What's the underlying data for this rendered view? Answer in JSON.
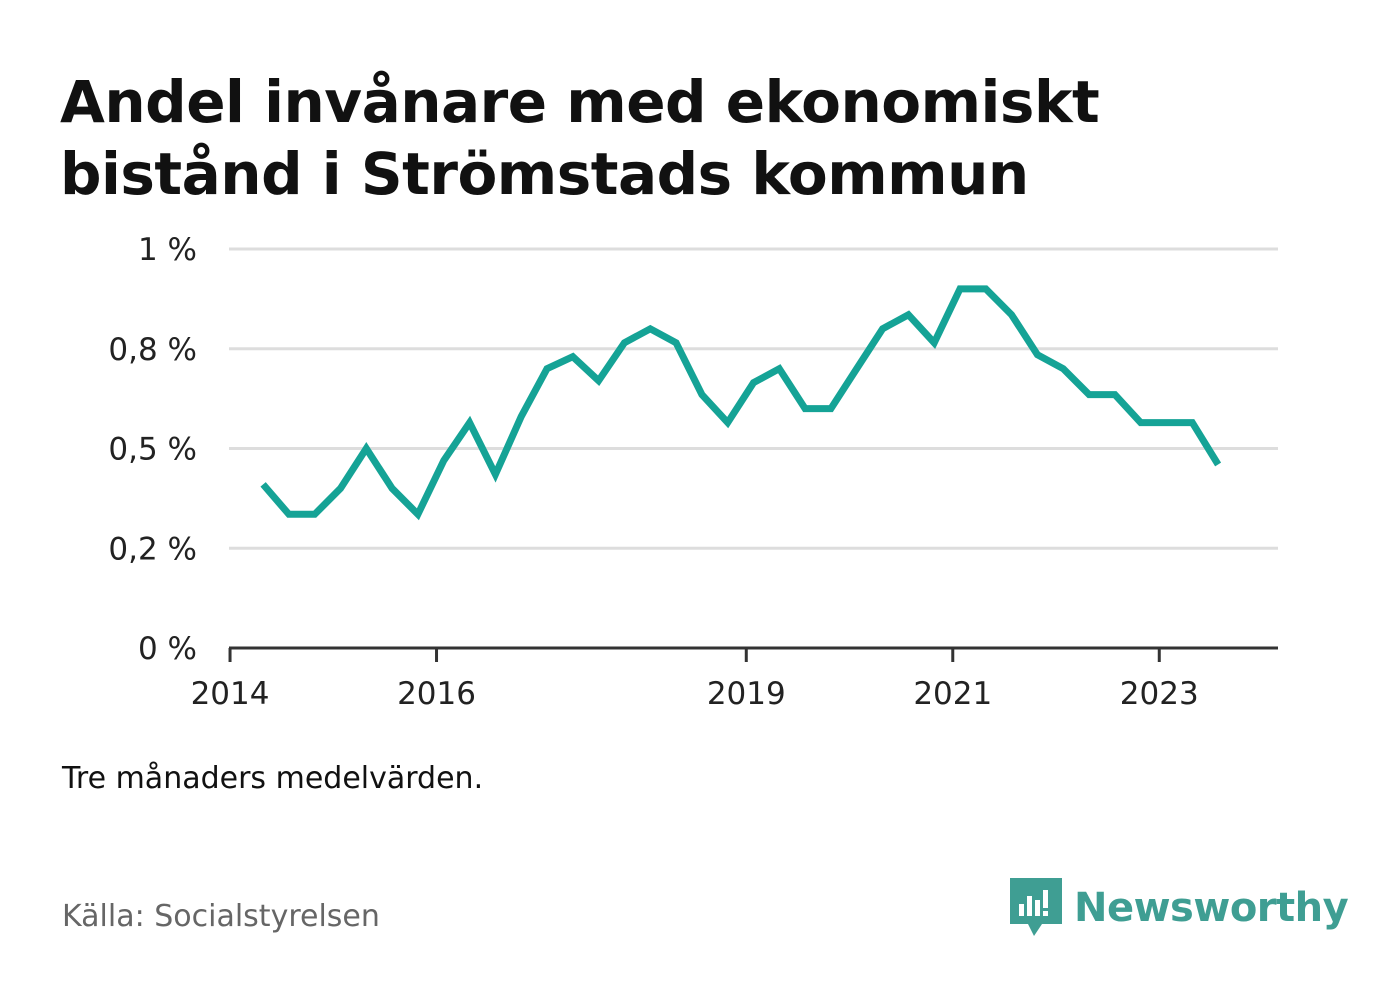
{
  "title": "Andel invånare med ekonomiskt bistånd i Strömstads kommun",
  "note": "Tre månaders medelvärden.",
  "source": "Källa: Socialstyrelsen",
  "brand": {
    "name": "Newsworthy",
    "color": "#3f9e93",
    "icon": "newsworthy-logo-icon"
  },
  "colors": {
    "line": "#15a396",
    "grid": "#dddddd",
    "axis": "#333333"
  },
  "chart_data": {
    "type": "line",
    "title": "Andel invånare med ekonomiskt bistånd i Strömstads kommun",
    "xlabel": "",
    "ylabel": "",
    "ylim": [
      0,
      1
    ],
    "grid": true,
    "y_ticks": [
      {
        "value": 0,
        "label": "0 %"
      },
      {
        "value": 0.25,
        "label": "0,2 %"
      },
      {
        "value": 0.5,
        "label": "0,5 %"
      },
      {
        "value": 0.75,
        "label": "0,8 %"
      },
      {
        "value": 1,
        "label": "1 %"
      }
    ],
    "x_ticks": [
      {
        "value": 2014.0,
        "label": "2014"
      },
      {
        "value": 2016.0,
        "label": "2016"
      },
      {
        "value": 2019.0,
        "label": "2019"
      },
      {
        "value": 2021.0,
        "label": "2021"
      },
      {
        "value": 2023.0,
        "label": "2023"
      }
    ],
    "xlim": [
      2013.99,
      2024.15
    ],
    "series": [
      {
        "x": [
          2014.32,
          2014.57,
          2014.82,
          2015.07,
          2015.32,
          2015.57,
          2015.82,
          2016.07,
          2016.32,
          2016.57,
          2016.82,
          2017.07,
          2017.32,
          2017.57,
          2017.82,
          2018.07,
          2018.32,
          2018.57,
          2018.82,
          2019.07,
          2019.32,
          2019.57,
          2019.82,
          2020.07,
          2020.32,
          2020.57,
          2020.82,
          2021.07,
          2021.32,
          2021.57,
          2021.82,
          2022.07,
          2022.32,
          2022.57,
          2022.82,
          2023.07,
          2023.32,
          2023.57
        ],
        "values": [
          0.41,
          0.335,
          0.335,
          0.4,
          0.5,
          0.4,
          0.335,
          0.47,
          0.565,
          0.435,
          0.58,
          0.7,
          0.73,
          0.67,
          0.765,
          0.8,
          0.765,
          0.635,
          0.565,
          0.665,
          0.7,
          0.6,
          0.6,
          0.7,
          0.8,
          0.835,
          0.765,
          0.9,
          0.9,
          0.835,
          0.735,
          0.7,
          0.635,
          0.635,
          0.565,
          0.565,
          0.565,
          0.46
        ]
      }
    ]
  }
}
